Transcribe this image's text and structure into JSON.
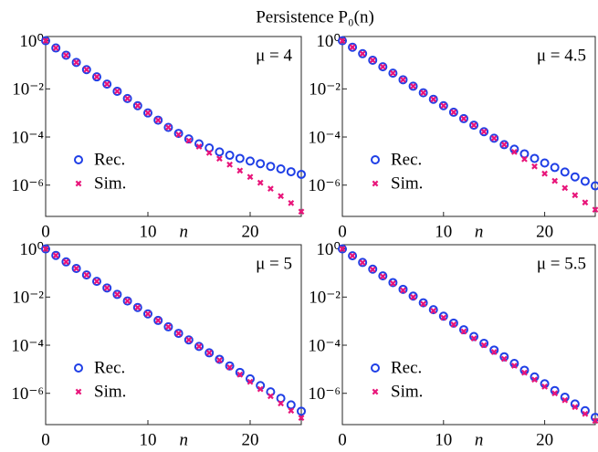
{
  "title": "Persistence P₀(n)",
  "chart_data": [
    {
      "type": "scatter",
      "annotation": "μ = 4",
      "xlabel": "n",
      "yscale": "log",
      "grid": false,
      "legend": "lower left",
      "xlim": [
        0,
        25
      ],
      "xticks": [
        0,
        10,
        20
      ],
      "ylim": [
        5e-08,
        1.5
      ],
      "yticks": [
        {
          "value": 1,
          "label": "10⁰"
        },
        {
          "value": 0.01,
          "label": "10⁻²"
        },
        {
          "value": 0.0001,
          "label": "10⁻⁴"
        },
        {
          "value": 1e-06,
          "label": "10⁻⁶"
        }
      ],
      "x": [
        0,
        1,
        2,
        3,
        4,
        5,
        6,
        7,
        8,
        9,
        10,
        11,
        12,
        13,
        14,
        15,
        16,
        17,
        18,
        19,
        20,
        21,
        22,
        23,
        24,
        25
      ],
      "series": [
        {
          "name": "Rec.",
          "color": "#1f3fe6",
          "marker": "circle",
          "values": [
            1,
            0.501,
            0.251,
            0.126,
            0.0631,
            0.0316,
            0.0158,
            0.00794,
            0.00398,
            0.002,
            0.001,
            0.000501,
            0.000251,
            0.000141,
            8.3e-05,
            5.2e-05,
            3.5e-05,
            2.4e-05,
            1.74e-05,
            1.29e-05,
            1e-05,
            7.8e-06,
            6e-06,
            4.7e-06,
            3.6e-06,
            2.8e-06
          ]
        },
        {
          "name": "Sim.",
          "color": "#e8157a",
          "marker": "x",
          "values": [
            1,
            0.501,
            0.251,
            0.126,
            0.0631,
            0.0316,
            0.0158,
            0.00794,
            0.00398,
            0.002,
            0.001,
            0.000501,
            0.000251,
            0.000126,
            7.1e-05,
            4e-05,
            2.2e-05,
            1.26e-05,
            7.1e-06,
            4e-06,
            2.2e-06,
            1.26e-06,
            7.1e-07,
            3.5e-07,
            1.8e-07,
            7.9e-08
          ]
        }
      ]
    },
    {
      "type": "scatter",
      "annotation": "μ = 4.5",
      "xlabel": "n",
      "yscale": "log",
      "grid": false,
      "legend": "lower left",
      "xlim": [
        0,
        25
      ],
      "xticks": [
        0,
        10,
        20
      ],
      "ylim": [
        5e-08,
        1.5
      ],
      "yticks": [
        {
          "value": 1,
          "label": "10⁰"
        },
        {
          "value": 0.01,
          "label": "10⁻²"
        },
        {
          "value": 0.0001,
          "label": "10⁻⁴"
        },
        {
          "value": 1e-06,
          "label": "10⁻⁶"
        }
      ],
      "x": [
        0,
        1,
        2,
        3,
        4,
        5,
        6,
        7,
        8,
        9,
        10,
        11,
        12,
        13,
        14,
        15,
        16,
        17,
        18,
        19,
        20,
        21,
        22,
        23,
        24,
        25
      ],
      "series": [
        {
          "name": "Rec.",
          "color": "#1f3fe6",
          "marker": "circle",
          "values": [
            1,
            0.54,
            0.29,
            0.155,
            0.083,
            0.045,
            0.024,
            0.0129,
            0.0069,
            0.0037,
            0.002,
            0.00107,
            0.00058,
            0.00031,
            0.000166,
            8.9e-05,
            4.8e-05,
            3.1e-05,
            2e-05,
            1.29e-05,
            8.3e-06,
            5.4e-06,
            3.5e-06,
            2.2e-06,
            1.45e-06,
            9.3e-07
          ]
        },
        {
          "name": "Sim.",
          "color": "#e8157a",
          "marker": "x",
          "values": [
            1,
            0.54,
            0.29,
            0.155,
            0.083,
            0.045,
            0.024,
            0.0129,
            0.0069,
            0.0037,
            0.002,
            0.00107,
            0.00058,
            0.00031,
            0.000166,
            8.9e-05,
            4.8e-05,
            2.4e-05,
            1.2e-05,
            6e-06,
            3e-06,
            1.5e-06,
            7.6e-07,
            3.8e-07,
            1.9e-07,
            9.5e-08
          ]
        }
      ]
    },
    {
      "type": "scatter",
      "annotation": "μ = 5",
      "xlabel": "n",
      "yscale": "log",
      "grid": false,
      "legend": "lower left",
      "xlim": [
        0,
        25
      ],
      "xticks": [
        0,
        10,
        20
      ],
      "ylim": [
        5e-08,
        1.5
      ],
      "yticks": [
        {
          "value": 1,
          "label": "10⁰"
        },
        {
          "value": 0.01,
          "label": "10⁻²"
        },
        {
          "value": 0.0001,
          "label": "10⁻⁴"
        },
        {
          "value": 1e-06,
          "label": "10⁻⁶"
        }
      ],
      "x": [
        0,
        1,
        2,
        3,
        4,
        5,
        6,
        7,
        8,
        9,
        10,
        11,
        12,
        13,
        14,
        15,
        16,
        17,
        18,
        19,
        20,
        21,
        22,
        23,
        24,
        25
      ],
      "series": [
        {
          "name": "Rec.",
          "color": "#1f3fe6",
          "marker": "circle",
          "values": [
            1,
            0.54,
            0.29,
            0.155,
            0.083,
            0.045,
            0.024,
            0.0129,
            0.0069,
            0.0037,
            0.002,
            0.00107,
            0.00058,
            0.00031,
            0.000166,
            8.9e-05,
            4.8e-05,
            2.6e-05,
            1.38e-05,
            7.4e-06,
            4e-06,
            2.1e-06,
            1.15e-06,
            6.2e-07,
            3.3e-07,
            1.8e-07
          ]
        },
        {
          "name": "Sim.",
          "color": "#e8157a",
          "marker": "x",
          "values": [
            1,
            0.54,
            0.29,
            0.155,
            0.083,
            0.045,
            0.024,
            0.0129,
            0.0069,
            0.0037,
            0.002,
            0.00107,
            0.00058,
            0.00031,
            0.000166,
            8.9e-05,
            4.8e-05,
            2.4e-05,
            1.2e-05,
            6e-06,
            3e-06,
            1.5e-06,
            7.6e-07,
            3.8e-07,
            1.9e-07,
            9.5e-08
          ]
        }
      ]
    },
    {
      "type": "scatter",
      "annotation": "μ = 5.5",
      "xlabel": "n",
      "yscale": "log",
      "grid": false,
      "legend": "lower left",
      "xlim": [
        0,
        25
      ],
      "xticks": [
        0,
        10,
        20
      ],
      "ylim": [
        5e-08,
        1.5
      ],
      "yticks": [
        {
          "value": 1,
          "label": "10⁰"
        },
        {
          "value": 0.01,
          "label": "10⁻²"
        },
        {
          "value": 0.0001,
          "label": "10⁻⁴"
        },
        {
          "value": 1e-06,
          "label": "10⁻⁶"
        }
      ],
      "x": [
        0,
        1,
        2,
        3,
        4,
        5,
        6,
        7,
        8,
        9,
        10,
        11,
        12,
        13,
        14,
        15,
        16,
        17,
        18,
        19,
        20,
        21,
        22,
        23,
        24,
        25
      ],
      "series": [
        {
          "name": "Rec.",
          "color": "#1f3fe6",
          "marker": "circle",
          "values": [
            1,
            0.52,
            0.275,
            0.145,
            0.076,
            0.04,
            0.021,
            0.011,
            0.0058,
            0.003,
            0.0016,
            0.00083,
            0.00044,
            0.00023,
            0.00012,
            6.3e-05,
            3.3e-05,
            1.74e-05,
            9.1e-06,
            4.8e-06,
            2.5e-06,
            1.3e-06,
            6.9e-07,
            3.6e-07,
            1.9e-07,
            1e-07
          ]
        },
        {
          "name": "Sim.",
          "color": "#e8157a",
          "marker": "x",
          "values": [
            1,
            0.52,
            0.27,
            0.14,
            0.072,
            0.037,
            0.019,
            0.01,
            0.0052,
            0.0027,
            0.0014,
            0.00072,
            0.00037,
            0.00019,
            0.0001,
            5.2e-05,
            2.7e-05,
            1.4e-05,
            7.2e-06,
            3.7e-06,
            1.9e-06,
            1e-06,
            5.2e-07,
            2.7e-07,
            1.4e-07,
            7.2e-08
          ]
        }
      ]
    }
  ]
}
